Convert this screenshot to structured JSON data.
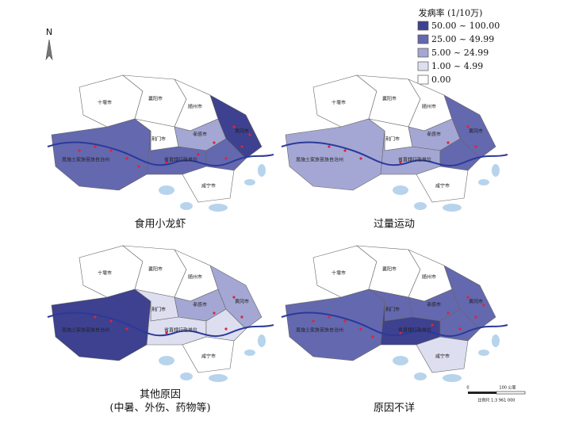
{
  "legend": {
    "title": "发病率 (1/10万)",
    "items": [
      {
        "label": "50.00 ~ 100.00",
        "color": "#3d418f"
      },
      {
        "label": "25.00 ~ 49.99",
        "color": "#6468ae"
      },
      {
        "label": "5.00 ~ 24.99",
        "color": "#a4a7d3"
      },
      {
        "label": "1.00 ~ 4.99",
        "color": "#dddeef"
      },
      {
        "label": "0.00",
        "color": "#ffffff"
      }
    ]
  },
  "north": "N",
  "panels": [
    {
      "caption": "食用小龙虾"
    },
    {
      "caption": "过量运动"
    },
    {
      "caption": "其他原因",
      "subcaption": "(中暑、外伤、药物等)"
    },
    {
      "caption": "原因不详"
    }
  ],
  "map_labels": [
    "十堰市",
    "襄阳市",
    "随州市",
    "荆门市",
    "孝感市",
    "恩施土家族苗族自治州",
    "省直辖行政单位",
    "咸宁市",
    "黄冈市"
  ],
  "scale_bar": {
    "labels": [
      "0",
      "100 公里"
    ],
    "ratio": "比例尺 1:3 961 000"
  }
}
